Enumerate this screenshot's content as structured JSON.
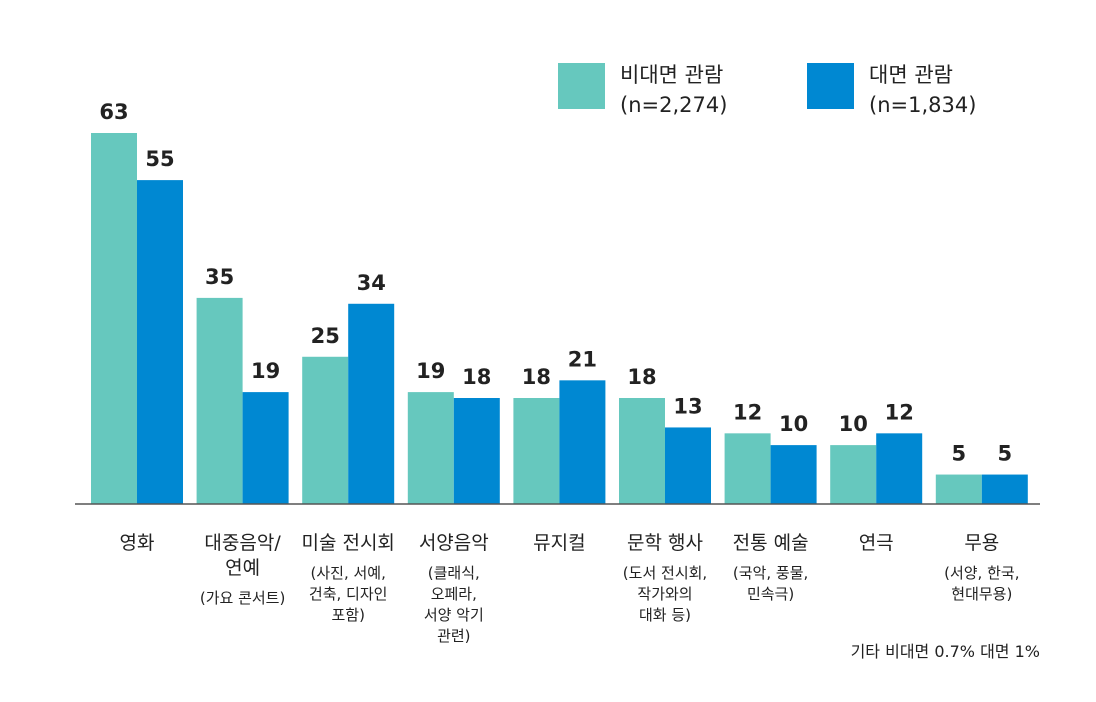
{
  "chart_data": {
    "type": "bar",
    "categories": [
      "영화",
      "대중음악/ 연예",
      "미술 전시회",
      "서양음악",
      "뮤지컬",
      "문학 행사",
      "전통 예술",
      "연극",
      "무용"
    ],
    "category_lines": [
      [
        "영화"
      ],
      [
        "대중음악/",
        "연예"
      ],
      [
        "미술 전시회"
      ],
      [
        "서양음악"
      ],
      [
        "뮤지컬"
      ],
      [
        "문학 행사"
      ],
      [
        "전통 예술"
      ],
      [
        "연극"
      ],
      [
        "무용"
      ]
    ],
    "category_notes": [
      [],
      [
        "(가요 콘서트)"
      ],
      [
        "(사진, 서예,",
        "건축, 디자인",
        "포함)"
      ],
      [
        "(클래식,",
        "오페라,",
        "서양 악기",
        "관련)"
      ],
      [],
      [
        "(도서 전시회,",
        "작가와의",
        "대화 등)"
      ],
      [
        "(국악, 풍물,",
        "민속극)"
      ],
      [],
      [
        "(서양, 한국,",
        "현대무용)"
      ]
    ],
    "series": [
      {
        "name": "비대면 관람",
        "n_label": "(n=2,274)",
        "color": "#66c8be",
        "values": [
          63,
          35,
          25,
          19,
          18,
          18,
          12,
          10,
          5
        ]
      },
      {
        "name": "대면 관람",
        "n_label": "(n=1,834)",
        "color": "#0088d2",
        "values": [
          55,
          19,
          34,
          18,
          21,
          13,
          10,
          12,
          5
        ]
      }
    ],
    "ylim": [
      0,
      63
    ],
    "grid": false,
    "legend": "top-right",
    "note": "기타 비대면 0.7% 대면 1%"
  }
}
